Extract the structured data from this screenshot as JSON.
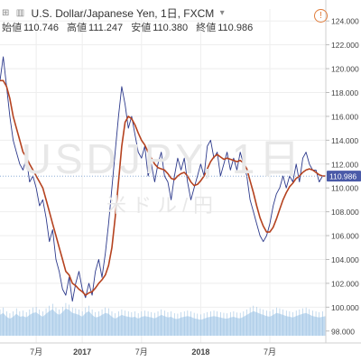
{
  "header": {
    "symbol_title": "U.S. Dollar/Japanese Yen, 1日, FXCM",
    "ohlc": [
      {
        "label": "始値",
        "value": "110.746"
      },
      {
        "label": "高値",
        "value": "111.247"
      },
      {
        "label": "安値",
        "value": "110.380"
      },
      {
        "label": "終値",
        "value": "110.986"
      }
    ],
    "alert_icon": "clock-alert-icon",
    "layout_icon": "grid-icon",
    "chart_icon": "bars-icon",
    "dropdown_icon": "caret-down-icon"
  },
  "watermark": {
    "line1": "USDJPY, 1日",
    "line2": "米ドル/円"
  },
  "colors": {
    "price_line": "#2d3a8c",
    "ma_line": "#b5421f",
    "volume_fill": "#bcd7ee",
    "price_tag": "#4a5aa8",
    "grid": "#eeeeee"
  },
  "chart_data": {
    "type": "line",
    "ylim": [
      97.0,
      125.0
    ],
    "y_ticks": [
      "124.000",
      "122.000",
      "120.000",
      "118.000",
      "116.000",
      "114.000",
      "112.000",
      "110.000",
      "108.000",
      "106.000",
      "104.000",
      "102.000",
      "100.000",
      "98.000"
    ],
    "x_ticks": [
      "7月",
      "2017",
      "7月",
      "2018",
      "7月"
    ],
    "last_price_label": "110.986",
    "last_price": 110.986,
    "series": [
      {
        "values": [
          119.0,
          121.0,
          118.5,
          116.0,
          114.0,
          113.0,
          112.0,
          111.5,
          112.5,
          110.5,
          111.0,
          110.0,
          108.5,
          109.0,
          107.5,
          105.5,
          106.5,
          104.0,
          103.0,
          101.5,
          101.0,
          102.5,
          100.5,
          102.0,
          103.0,
          101.5,
          100.8,
          102.0,
          101.0,
          103.0,
          104.0,
          102.5,
          104.5,
          107.0,
          110.0,
          113.0,
          116.0,
          118.5,
          117.0,
          115.0,
          116.0,
          114.5,
          113.0,
          112.5,
          113.5,
          111.0,
          112.0,
          110.5,
          112.0,
          113.0,
          111.0,
          110.5,
          109.0,
          111.0,
          112.5,
          111.5,
          112.5,
          110.5,
          109.0,
          110.0,
          111.0,
          112.0,
          111.0,
          113.5,
          114.0,
          112.5,
          113.0,
          111.0,
          112.0,
          113.0,
          111.5,
          112.5,
          111.5,
          113.0,
          112.0,
          111.0,
          109.0,
          108.0,
          107.0,
          106.0,
          105.5,
          106.0,
          107.0,
          108.5,
          109.5,
          110.0,
          111.0,
          110.0,
          111.0,
          110.5,
          112.0,
          110.5,
          112.5,
          113.0,
          112.0,
          111.5,
          111.5,
          110.5,
          111.0,
          110.986
        ]
      },
      {
        "values": [
          119.0,
          119.0,
          118.5,
          117.5,
          116.0,
          115.0,
          114.0,
          113.0,
          112.6,
          112.0,
          111.5,
          111.0,
          110.5,
          110.0,
          109.0,
          108.0,
          107.0,
          106.0,
          105.0,
          104.0,
          103.0,
          102.7,
          102.0,
          101.8,
          101.5,
          101.3,
          101.0,
          101.2,
          101.3,
          101.6,
          102.0,
          102.3,
          102.7,
          103.5,
          105.0,
          107.5,
          110.5,
          113.5,
          115.5,
          116.0,
          115.8,
          115.3,
          114.6,
          114.0,
          113.6,
          113.0,
          112.5,
          112.0,
          111.7,
          111.6,
          111.5,
          111.2,
          110.8,
          110.7,
          111.0,
          111.2,
          111.3,
          111.0,
          110.5,
          110.2,
          110.3,
          110.6,
          111.0,
          111.6,
          112.2,
          112.6,
          112.8,
          112.6,
          112.4,
          112.5,
          112.4,
          112.3,
          112.2,
          112.3,
          112.1,
          111.6,
          110.6,
          109.6,
          108.5,
          107.5,
          106.8,
          106.3,
          106.3,
          106.7,
          107.4,
          108.2,
          109.0,
          109.6,
          110.1,
          110.4,
          110.8,
          111.0,
          111.3,
          111.5,
          111.6,
          111.5,
          111.3,
          111.1,
          111.0,
          111.0
        ]
      }
    ],
    "volume": [
      0.55,
      0.6,
      0.5,
      0.45,
      0.5,
      0.58,
      0.5,
      0.52,
      0.48,
      0.55,
      0.6,
      0.62,
      0.55,
      0.5,
      0.58,
      0.65,
      0.7,
      0.6,
      0.55,
      0.62,
      0.72,
      0.68,
      0.6,
      0.58,
      0.55,
      0.5,
      0.6,
      0.65,
      0.55,
      0.48,
      0.5,
      0.55,
      0.6,
      0.58,
      0.5,
      0.45,
      0.5,
      0.55,
      0.52,
      0.5,
      0.48,
      0.5,
      0.45,
      0.5,
      0.52,
      0.5,
      0.48,
      0.46,
      0.5,
      0.55,
      0.52,
      0.48,
      0.5,
      0.45,
      0.44,
      0.48,
      0.5,
      0.52,
      0.5,
      0.46,
      0.44,
      0.42,
      0.45,
      0.48,
      0.5,
      0.52,
      0.5,
      0.48,
      0.46,
      0.45,
      0.48,
      0.5,
      0.47,
      0.46,
      0.5,
      0.55,
      0.6,
      0.65,
      0.62,
      0.58,
      0.55,
      0.52,
      0.5,
      0.55,
      0.6,
      0.58,
      0.55,
      0.52,
      0.5,
      0.48,
      0.52,
      0.55,
      0.58,
      0.6,
      0.56,
      0.52,
      0.5,
      0.48,
      0.5,
      0.52
    ]
  }
}
